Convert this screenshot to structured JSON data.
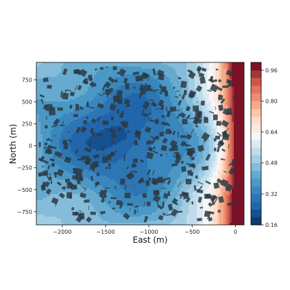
{
  "chart_data": {
    "type": "heatmap",
    "title": "",
    "xlabel": "East (m)",
    "ylabel": "North (m)",
    "xlim": [
      -2300,
      100
    ],
    "ylim": [
      -900,
      950
    ],
    "xticks": [
      -2000,
      -1500,
      -1000,
      -500,
      0
    ],
    "yticks": [
      -750,
      -500,
      -250,
      0,
      250,
      500,
      750
    ],
    "colorbar": {
      "colormap": "RdBu_r",
      "levels": [
        0.16,
        0.2,
        0.24,
        0.28,
        0.32,
        0.36,
        0.4,
        0.44,
        0.48,
        0.52,
        0.56,
        0.6,
        0.64,
        0.68,
        0.72,
        0.76,
        0.8,
        0.84,
        0.88,
        0.92,
        0.96,
        1.0
      ],
      "ticks": [
        0.16,
        0.32,
        0.48,
        0.64,
        0.8,
        0.96
      ],
      "range": [
        0.16,
        1.0
      ]
    },
    "field_description_values": {
      "minimum_region_center": [
        -1300,
        100
      ],
      "minimum_value": 0.2,
      "maximum_edge": "east",
      "maximum_value": 1.0
    },
    "overlay": "building footprints (dark polygons)",
    "grid": false
  },
  "colors": {
    "background": "#ffffff",
    "building": "#2b3a44",
    "axis": "#000000"
  }
}
